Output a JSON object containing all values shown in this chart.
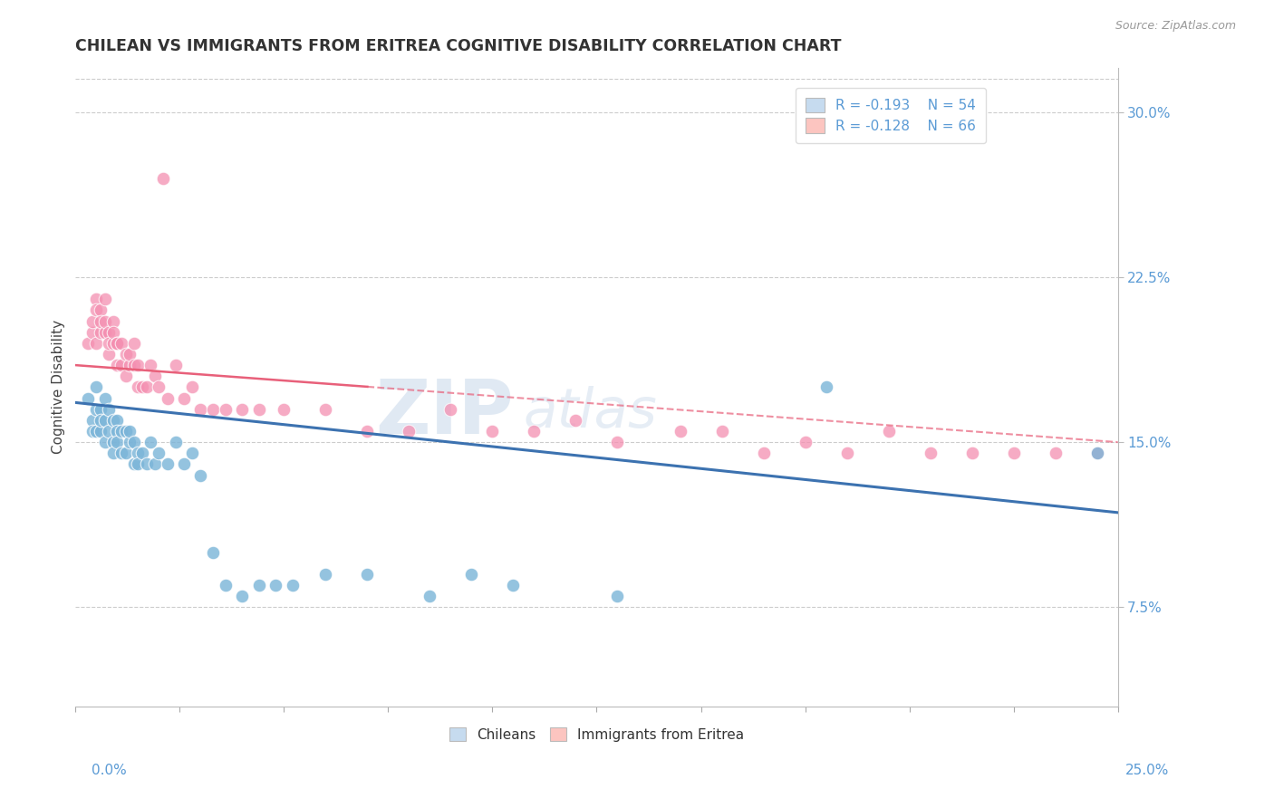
{
  "title": "CHILEAN VS IMMIGRANTS FROM ERITREA COGNITIVE DISABILITY CORRELATION CHART",
  "source": "Source: ZipAtlas.com",
  "ylabel": "Cognitive Disability",
  "right_yticks": [
    "30.0%",
    "22.5%",
    "15.0%",
    "7.5%"
  ],
  "right_ytick_values": [
    0.3,
    0.225,
    0.15,
    0.075
  ],
  "xmin": 0.0,
  "xmax": 0.25,
  "ymin": 0.03,
  "ymax": 0.32,
  "blue_color": "#7ab4d8",
  "blue_fill": "#c6dbef",
  "pink_color": "#f48fb1",
  "pink_fill": "#fcc5c0",
  "blue_line_color": "#3c72b0",
  "pink_line_color": "#e8607a",
  "watermark": "ZIPAtlas",
  "chileans_x": [
    0.003,
    0.004,
    0.004,
    0.005,
    0.005,
    0.005,
    0.006,
    0.006,
    0.006,
    0.007,
    0.007,
    0.007,
    0.008,
    0.008,
    0.009,
    0.009,
    0.009,
    0.01,
    0.01,
    0.01,
    0.011,
    0.011,
    0.012,
    0.012,
    0.013,
    0.013,
    0.014,
    0.014,
    0.015,
    0.015,
    0.016,
    0.017,
    0.018,
    0.019,
    0.02,
    0.022,
    0.024,
    0.026,
    0.028,
    0.03,
    0.033,
    0.036,
    0.04,
    0.044,
    0.048,
    0.052,
    0.06,
    0.07,
    0.085,
    0.095,
    0.105,
    0.13,
    0.18,
    0.245
  ],
  "chileans_y": [
    0.17,
    0.16,
    0.155,
    0.175,
    0.165,
    0.155,
    0.165,
    0.155,
    0.16,
    0.17,
    0.16,
    0.15,
    0.165,
    0.155,
    0.16,
    0.15,
    0.145,
    0.16,
    0.155,
    0.15,
    0.155,
    0.145,
    0.155,
    0.145,
    0.15,
    0.155,
    0.14,
    0.15,
    0.145,
    0.14,
    0.145,
    0.14,
    0.15,
    0.14,
    0.145,
    0.14,
    0.15,
    0.14,
    0.145,
    0.135,
    0.1,
    0.085,
    0.08,
    0.085,
    0.085,
    0.085,
    0.09,
    0.09,
    0.08,
    0.09,
    0.085,
    0.08,
    0.175,
    0.145
  ],
  "eritrea_x": [
    0.003,
    0.004,
    0.004,
    0.005,
    0.005,
    0.005,
    0.006,
    0.006,
    0.006,
    0.007,
    0.007,
    0.007,
    0.008,
    0.008,
    0.008,
    0.009,
    0.009,
    0.009,
    0.01,
    0.01,
    0.01,
    0.011,
    0.011,
    0.012,
    0.012,
    0.013,
    0.013,
    0.014,
    0.014,
    0.015,
    0.015,
    0.016,
    0.017,
    0.018,
    0.019,
    0.02,
    0.021,
    0.022,
    0.024,
    0.026,
    0.028,
    0.03,
    0.033,
    0.036,
    0.04,
    0.044,
    0.05,
    0.06,
    0.07,
    0.08,
    0.09,
    0.1,
    0.11,
    0.12,
    0.13,
    0.145,
    0.155,
    0.165,
    0.175,
    0.185,
    0.195,
    0.205,
    0.215,
    0.225,
    0.235,
    0.245
  ],
  "eritrea_y": [
    0.195,
    0.2,
    0.205,
    0.215,
    0.21,
    0.195,
    0.21,
    0.2,
    0.205,
    0.2,
    0.215,
    0.205,
    0.19,
    0.2,
    0.195,
    0.195,
    0.205,
    0.2,
    0.195,
    0.185,
    0.195,
    0.185,
    0.195,
    0.18,
    0.19,
    0.185,
    0.19,
    0.195,
    0.185,
    0.175,
    0.185,
    0.175,
    0.175,
    0.185,
    0.18,
    0.175,
    0.27,
    0.17,
    0.185,
    0.17,
    0.175,
    0.165,
    0.165,
    0.165,
    0.165,
    0.165,
    0.165,
    0.165,
    0.155,
    0.155,
    0.165,
    0.155,
    0.155,
    0.16,
    0.15,
    0.155,
    0.155,
    0.145,
    0.15,
    0.145,
    0.155,
    0.145,
    0.145,
    0.145,
    0.145,
    0.145
  ],
  "blue_trend_x0": 0.0,
  "blue_trend_y0": 0.168,
  "blue_trend_x1": 0.25,
  "blue_trend_y1": 0.118,
  "pink_trend_x0": 0.0,
  "pink_trend_y0": 0.185,
  "pink_trend_x1": 0.25,
  "pink_trend_y1": 0.15
}
